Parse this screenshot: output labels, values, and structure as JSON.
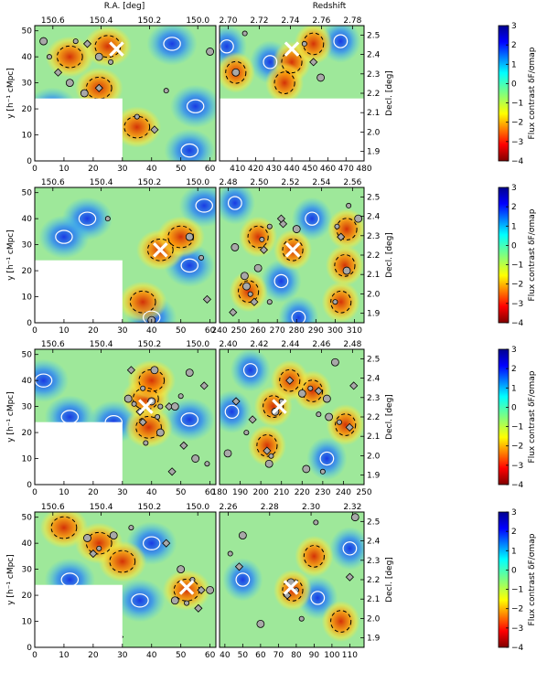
{
  "figure": {
    "top_labels": {
      "ra": "R.A. [deg]",
      "z": "Redshift"
    },
    "ylabel_left": "y [h⁻¹ cMpc]",
    "ylabel_right": "Decl. [deg]",
    "cbar_label": "Flux contrast δF/σmap"
  },
  "chart_data": [
    {
      "type": "heatmap",
      "row": 1,
      "panel": "x-y map",
      "xlim": [
        0,
        62
      ],
      "ylim": [
        0,
        52
      ],
      "xticks": [
        0,
        10,
        20,
        30,
        40,
        50,
        60
      ],
      "yticks": [
        0,
        10,
        20,
        30,
        40,
        50
      ],
      "top_axis_label": "R.A. [deg]",
      "top_ticks": [
        "150.6",
        "150.4",
        "150.2",
        "150.0"
      ],
      "marker": {
        "x": 28,
        "y": 43
      },
      "masked_region": {
        "x": [
          0,
          30
        ],
        "y": [
          0,
          24
        ]
      },
      "hotspots": [
        {
          "x": 12,
          "y": 40
        },
        {
          "x": 25,
          "y": 44
        },
        {
          "x": 22,
          "y": 28
        },
        {
          "x": 35,
          "y": 13
        },
        {
          "x": 3,
          "y": 10
        }
      ],
      "coldspots": [
        {
          "x": 47,
          "y": 45
        },
        {
          "x": 55,
          "y": 21
        },
        {
          "x": 53,
          "y": 4
        },
        {
          "x": 6,
          "y": 20
        }
      ],
      "galaxies": [
        {
          "x": 3,
          "y": 46
        },
        {
          "x": 5,
          "y": 40
        },
        {
          "x": 8,
          "y": 34
        },
        {
          "x": 12,
          "y": 30
        },
        {
          "x": 14,
          "y": 46
        },
        {
          "x": 18,
          "y": 45
        },
        {
          "x": 22,
          "y": 40
        },
        {
          "x": 26,
          "y": 38
        },
        {
          "x": 22,
          "y": 28
        },
        {
          "x": 17,
          "y": 26
        },
        {
          "x": 35,
          "y": 17
        },
        {
          "x": 41,
          "y": 12
        },
        {
          "x": 60,
          "y": 42
        },
        {
          "x": 45,
          "y": 27
        }
      ]
    },
    {
      "type": "heatmap",
      "row": 1,
      "panel": "x-z map",
      "xlim": [
        400,
        480
      ],
      "ylim": [
        0,
        52
      ],
      "xticks": [
        410,
        420,
        430,
        440,
        450,
        460,
        470,
        480
      ],
      "top_axis_label": "Redshift",
      "top_ticks": [
        "2.70",
        "2.72",
        "2.74",
        "2.76",
        "2.78"
      ],
      "right_ticks": [
        "1.9",
        "2.0",
        "2.1",
        "2.2",
        "2.3",
        "2.4",
        "2.5"
      ],
      "marker": {
        "x": 440,
        "y": 43
      },
      "masked_region": {
        "x": [
          400,
          480
        ],
        "y": [
          0,
          24
        ]
      },
      "hotspots": [
        {
          "x": 440,
          "y": 38
        },
        {
          "x": 436,
          "y": 30
        },
        {
          "x": 452,
          "y": 45
        },
        {
          "x": 409,
          "y": 34
        }
      ],
      "coldspots": [
        {
          "x": 428,
          "y": 38
        },
        {
          "x": 467,
          "y": 46
        },
        {
          "x": 404,
          "y": 44
        }
      ],
      "galaxies": [
        {
          "x": 409,
          "y": 34
        },
        {
          "x": 447,
          "y": 45
        },
        {
          "x": 452,
          "y": 38
        },
        {
          "x": 456,
          "y": 32
        },
        {
          "x": 414,
          "y": 49
        },
        {
          "x": 412,
          "y": 5
        },
        {
          "x": 423,
          "y": 5
        },
        {
          "x": 426,
          "y": 3
        },
        {
          "x": 479,
          "y": 8
        }
      ]
    },
    {
      "type": "heatmap",
      "row": 2,
      "panel": "x-y map",
      "xlim": [
        0,
        62
      ],
      "ylim": [
        0,
        52
      ],
      "xticks": [
        0,
        10,
        20,
        30,
        40,
        50,
        60
      ],
      "yticks": [
        0,
        10,
        20,
        30,
        40,
        50
      ],
      "top_axis_label": "R.A. [deg]",
      "top_ticks": [
        "150.6",
        "150.4",
        "150.2",
        "150.0"
      ],
      "marker": {
        "x": 43,
        "y": 28
      },
      "masked_region": {
        "x": [
          0,
          30
        ],
        "y": [
          0,
          24
        ]
      },
      "hotspots": [
        {
          "x": 43,
          "y": 28
        },
        {
          "x": 50,
          "y": 33
        },
        {
          "x": 37,
          "y": 8
        }
      ],
      "coldspots": [
        {
          "x": 18,
          "y": 40
        },
        {
          "x": 53,
          "y": 22
        },
        {
          "x": 40,
          "y": 2
        },
        {
          "x": 10,
          "y": 33
        },
        {
          "x": 58,
          "y": 45
        }
      ],
      "galaxies": [
        {
          "x": 53,
          "y": 33
        },
        {
          "x": 57,
          "y": 25
        },
        {
          "x": 59,
          "y": 9
        },
        {
          "x": 40,
          "y": 1
        },
        {
          "x": 25,
          "y": 40
        }
      ]
    },
    {
      "type": "heatmap",
      "row": 2,
      "panel": "x-z map",
      "xlim": [
        240,
        315
      ],
      "ylim": [
        0,
        52
      ],
      "xticks": [
        240,
        250,
        260,
        270,
        280,
        290,
        300,
        310
      ],
      "top_axis_label": "Redshift",
      "top_ticks": [
        "2.48",
        "2.50",
        "2.52",
        "2.54",
        "2.56"
      ],
      "right_ticks": [
        "1.9",
        "2.0",
        "2.1",
        "2.2",
        "2.3",
        "2.4",
        "2.5"
      ],
      "marker": {
        "x": 278,
        "y": 28
      },
      "masked_region": null,
      "hotspots": [
        {
          "x": 255,
          "y": 12
        },
        {
          "x": 260,
          "y": 33
        },
        {
          "x": 278,
          "y": 28
        },
        {
          "x": 306,
          "y": 36
        },
        {
          "x": 305,
          "y": 22
        },
        {
          "x": 303,
          "y": 8
        }
      ],
      "coldspots": [
        {
          "x": 248,
          "y": 46
        },
        {
          "x": 272,
          "y": 16
        },
        {
          "x": 281,
          "y": 2
        },
        {
          "x": 288,
          "y": 40
        }
      ],
      "galaxies": [
        {
          "x": 254,
          "y": 14
        },
        {
          "x": 256,
          "y": 11
        },
        {
          "x": 258,
          "y": 8
        },
        {
          "x": 253,
          "y": 18
        },
        {
          "x": 262,
          "y": 32
        },
        {
          "x": 263,
          "y": 28
        },
        {
          "x": 260,
          "y": 21
        },
        {
          "x": 266,
          "y": 37
        },
        {
          "x": 273,
          "y": 38
        },
        {
          "x": 280,
          "y": 36
        },
        {
          "x": 301,
          "y": 37
        },
        {
          "x": 303,
          "y": 33
        },
        {
          "x": 306,
          "y": 20
        },
        {
          "x": 300,
          "y": 8
        },
        {
          "x": 247,
          "y": 4
        },
        {
          "x": 248,
          "y": 29
        },
        {
          "x": 266,
          "y": 8
        },
        {
          "x": 272,
          "y": 40
        },
        {
          "x": 312,
          "y": 40
        },
        {
          "x": 307,
          "y": 45
        }
      ]
    },
    {
      "type": "heatmap",
      "row": 3,
      "panel": "x-y map",
      "xlim": [
        0,
        62
      ],
      "ylim": [
        0,
        52
      ],
      "xticks": [
        0,
        10,
        20,
        30,
        40,
        50,
        60
      ],
      "yticks": [
        0,
        10,
        20,
        30,
        40,
        50
      ],
      "top_axis_label": "R.A. [deg]",
      "top_ticks": [
        "150.6",
        "150.4",
        "150.2",
        "150.0"
      ],
      "marker": {
        "x": 38,
        "y": 30
      },
      "masked_region": {
        "x": [
          0,
          30
        ],
        "y": [
          0,
          24
        ]
      },
      "hotspots": [
        {
          "x": 38,
          "y": 33
        },
        {
          "x": 40,
          "y": 40
        },
        {
          "x": 39,
          "y": 22
        }
      ],
      "coldspots": [
        {
          "x": 3,
          "y": 40
        },
        {
          "x": 12,
          "y": 26
        },
        {
          "x": 27,
          "y": 24
        },
        {
          "x": 53,
          "y": 25
        }
      ],
      "galaxies": [
        {
          "x": 32,
          "y": 33
        },
        {
          "x": 34,
          "y": 31
        },
        {
          "x": 36,
          "y": 28
        },
        {
          "x": 40,
          "y": 32
        },
        {
          "x": 43,
          "y": 30
        },
        {
          "x": 46,
          "y": 30
        },
        {
          "x": 48,
          "y": 30
        },
        {
          "x": 42,
          "y": 26
        },
        {
          "x": 37,
          "y": 24
        },
        {
          "x": 41,
          "y": 44
        },
        {
          "x": 37,
          "y": 37
        },
        {
          "x": 33,
          "y": 44
        },
        {
          "x": 53,
          "y": 43
        },
        {
          "x": 50,
          "y": 34
        },
        {
          "x": 58,
          "y": 38
        },
        {
          "x": 43,
          "y": 20
        },
        {
          "x": 38,
          "y": 16
        },
        {
          "x": 51,
          "y": 15
        },
        {
          "x": 55,
          "y": 10
        },
        {
          "x": 59,
          "y": 8
        },
        {
          "x": 47,
          "y": 5
        }
      ]
    },
    {
      "type": "heatmap",
      "row": 3,
      "panel": "x-z map",
      "xlim": [
        180,
        250
      ],
      "ylim": [
        0,
        52
      ],
      "xticks": [
        180,
        190,
        200,
        210,
        220,
        230,
        240,
        250
      ],
      "top_axis_label": "Redshift",
      "top_ticks": [
        "2.40",
        "2.42",
        "2.44",
        "2.46",
        "2.48"
      ],
      "right_ticks": [
        "1.9",
        "2.0",
        "2.1",
        "2.2",
        "2.3",
        "2.4",
        "2.5"
      ],
      "marker": {
        "x": 209,
        "y": 30
      },
      "masked_region": null,
      "hotspots": [
        {
          "x": 206,
          "y": 30
        },
        {
          "x": 203,
          "y": 15
        },
        {
          "x": 225,
          "y": 36
        },
        {
          "x": 241,
          "y": 23
        },
        {
          "x": 214,
          "y": 40
        }
      ],
      "coldspots": [
        {
          "x": 186,
          "y": 28
        },
        {
          "x": 232,
          "y": 10
        },
        {
          "x": 195,
          "y": 44
        }
      ],
      "galaxies": [
        {
          "x": 204,
          "y": 8
        },
        {
          "x": 205,
          "y": 11
        },
        {
          "x": 203,
          "y": 13
        },
        {
          "x": 207,
          "y": 28
        },
        {
          "x": 210,
          "y": 32
        },
        {
          "x": 214,
          "y": 40
        },
        {
          "x": 220,
          "y": 35
        },
        {
          "x": 224,
          "y": 37
        },
        {
          "x": 228,
          "y": 36
        },
        {
          "x": 232,
          "y": 33
        },
        {
          "x": 238,
          "y": 24
        },
        {
          "x": 243,
          "y": 22
        },
        {
          "x": 233,
          "y": 26
        },
        {
          "x": 228,
          "y": 27
        },
        {
          "x": 188,
          "y": 32
        },
        {
          "x": 184,
          "y": 12
        },
        {
          "x": 193,
          "y": 20
        },
        {
          "x": 196,
          "y": 25
        },
        {
          "x": 222,
          "y": 6
        },
        {
          "x": 230,
          "y": 5
        },
        {
          "x": 245,
          "y": 38
        },
        {
          "x": 236,
          "y": 47
        }
      ]
    },
    {
      "type": "heatmap",
      "row": 4,
      "panel": "x-y map",
      "xlim": [
        0,
        62
      ],
      "ylim": [
        0,
        52
      ],
      "xticks": [
        0,
        10,
        20,
        30,
        40,
        50,
        60
      ],
      "yticks": [
        0,
        10,
        20,
        30,
        40,
        50
      ],
      "top_axis_label": "R.A. [deg]",
      "top_ticks": [
        "150.6",
        "150.4",
        "150.2",
        "150.0"
      ],
      "marker": {
        "x": 52,
        "y": 23
      },
      "masked_region": {
        "x": [
          0,
          30
        ],
        "y": [
          0,
          24
        ]
      },
      "hotspots": [
        {
          "x": 52,
          "y": 22
        },
        {
          "x": 10,
          "y": 46
        },
        {
          "x": 22,
          "y": 40
        },
        {
          "x": 30,
          "y": 33
        }
      ],
      "coldspots": [
        {
          "x": 12,
          "y": 26
        },
        {
          "x": 40,
          "y": 40
        },
        {
          "x": 36,
          "y": 18
        }
      ],
      "galaxies": [
        {
          "x": 18,
          "y": 42
        },
        {
          "x": 22,
          "y": 38
        },
        {
          "x": 20,
          "y": 36
        },
        {
          "x": 27,
          "y": 43
        },
        {
          "x": 33,
          "y": 46
        },
        {
          "x": 45,
          "y": 40
        },
        {
          "x": 50,
          "y": 30
        },
        {
          "x": 54,
          "y": 26
        },
        {
          "x": 57,
          "y": 22
        },
        {
          "x": 48,
          "y": 18
        },
        {
          "x": 52,
          "y": 17
        },
        {
          "x": 56,
          "y": 15
        },
        {
          "x": 60,
          "y": 22
        },
        {
          "x": 10,
          "y": 12
        },
        {
          "x": 12,
          "y": 8
        },
        {
          "x": 21,
          "y": 8
        },
        {
          "x": 21,
          "y": 4
        },
        {
          "x": 29,
          "y": 4
        }
      ]
    },
    {
      "type": "heatmap",
      "row": 4,
      "panel": "x-z map",
      "xlim": [
        37,
        118
      ],
      "ylim": [
        0,
        52
      ],
      "xticks": [
        40,
        50,
        60,
        70,
        80,
        90,
        100,
        110
      ],
      "top_axis_label": "Redshift",
      "top_ticks": [
        "2.26",
        "2.28",
        "2.30",
        "2.32"
      ],
      "right_ticks": [
        "1.9",
        "2.0",
        "2.1",
        "2.2",
        "2.3",
        "2.4",
        "2.5"
      ],
      "marker": {
        "x": 77,
        "y": 23
      },
      "masked_region": null,
      "hotspots": [
        {
          "x": 78,
          "y": 22
        },
        {
          "x": 90,
          "y": 35
        },
        {
          "x": 105,
          "y": 10
        }
      ],
      "coldspots": [
        {
          "x": 92,
          "y": 19
        },
        {
          "x": 50,
          "y": 26
        },
        {
          "x": 110,
          "y": 38
        }
      ],
      "galaxies": [
        {
          "x": 77,
          "y": 25
        },
        {
          "x": 80,
          "y": 22
        },
        {
          "x": 75,
          "y": 20
        },
        {
          "x": 50,
          "y": 43
        },
        {
          "x": 43,
          "y": 36
        },
        {
          "x": 48,
          "y": 31
        },
        {
          "x": 60,
          "y": 9
        },
        {
          "x": 83,
          "y": 11
        },
        {
          "x": 110,
          "y": 27
        },
        {
          "x": 113,
          "y": 50
        },
        {
          "x": 91,
          "y": 48
        }
      ]
    }
  ],
  "colorbars": [
    {
      "label": "Flux contrast δF/σmap",
      "ticks": [
        "3",
        "2",
        "1",
        "0",
        "−1",
        "−2",
        "−3",
        "−4"
      ],
      "range": [
        -4,
        3
      ]
    },
    {
      "label": "Flux contrast δF/σmap",
      "ticks": [
        "3",
        "2",
        "1",
        "0",
        "−1",
        "−2",
        "−3",
        "−4"
      ],
      "range": [
        -4,
        3
      ]
    },
    {
      "label": "Flux contrast δF/σmap",
      "ticks": [
        "3",
        "2",
        "1",
        "0",
        "−1",
        "−2",
        "−3",
        "−4"
      ],
      "range": [
        -4,
        3
      ]
    },
    {
      "label": "Flux contrast δF/σmap",
      "ticks": [
        "3",
        "2",
        "1",
        "0",
        "−1",
        "−2",
        "−3",
        "−4"
      ],
      "range": [
        -4,
        3
      ]
    }
  ]
}
